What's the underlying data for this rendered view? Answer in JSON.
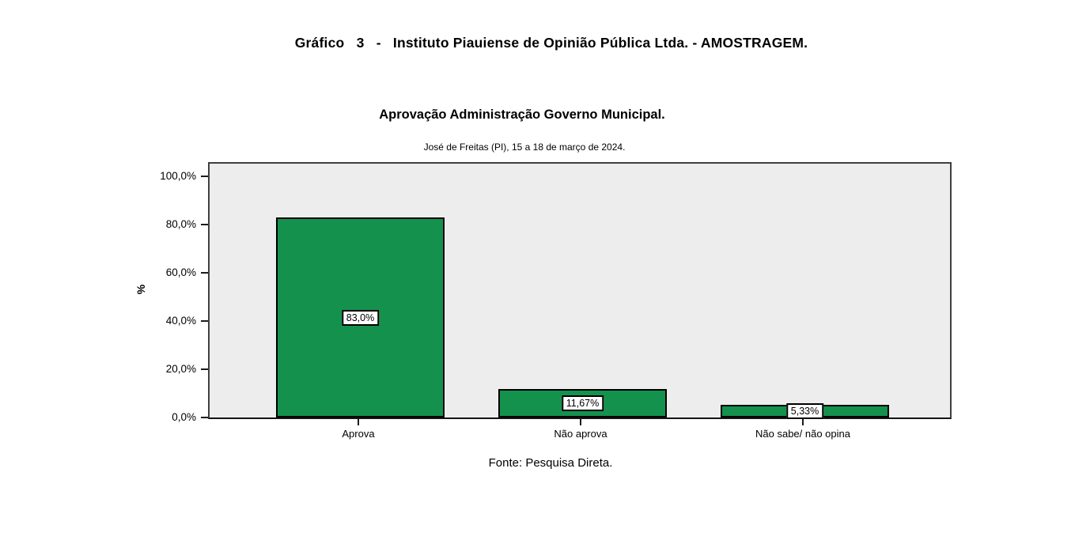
{
  "figure": {
    "caption": "Gráfico   3   -   Instituto Piauiense de Opinião Pública Ltda. - AMOSTRAGEM."
  },
  "chart_data": {
    "type": "bar",
    "title": "Aprovação Administração Governo Municipal.",
    "subtitle": "José de Freitas (PI), 15 a 18 de março de 2024.",
    "xlabel": "",
    "ylabel": "%",
    "categories": [
      "Aprova",
      "Não aprova",
      "Não sabe/ não opina"
    ],
    "values": [
      83.0,
      11.67,
      5.33
    ],
    "value_labels": [
      "83,0%",
      "11,67%",
      "5,33%"
    ],
    "yticks": [
      {
        "value": 100,
        "label": "100,0%"
      },
      {
        "value": 80,
        "label": "80,0%"
      },
      {
        "value": 60,
        "label": "60,0%"
      },
      {
        "value": 40,
        "label": "40,0%"
      },
      {
        "value": 20,
        "label": "20,0%"
      },
      {
        "value": 0,
        "label": "0,0%"
      }
    ],
    "ylim": [
      0,
      106
    ],
    "grid": false,
    "legend": "none",
    "bar_color": "#15914E",
    "bar_border_color": "#000000",
    "plot_background": "#EDEDED",
    "source": "Fonte: Pesquisa Direta."
  }
}
